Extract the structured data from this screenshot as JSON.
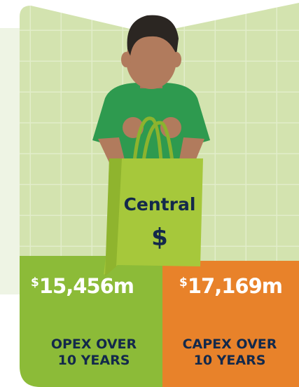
{
  "bag": {
    "label": "Central",
    "symbol": "$"
  },
  "panels": [
    {
      "currency": "$",
      "amount": "15,456m",
      "caption": [
        "OPEX OVER",
        "10 YEARS"
      ]
    },
    {
      "currency": "$",
      "amount": "17,169m",
      "caption": [
        "CAPEX OVER",
        "10 YEARS"
      ]
    }
  ]
}
